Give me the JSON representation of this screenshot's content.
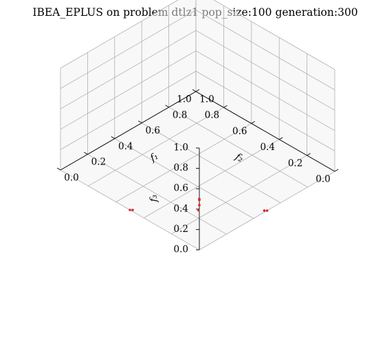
{
  "chart_data": {
    "type": "scatter",
    "title": "IBEA_EPLUS on problem dtlz1 pop_size:100 generation:300",
    "xlabel": "f₁",
    "ylabel": "f₂",
    "zlabel": "f₃",
    "xlim": [
      0,
      1
    ],
    "ylim": [
      0,
      1
    ],
    "zlim": [
      0,
      1
    ],
    "x_ticks": [
      "0.0",
      "0.2",
      "0.4",
      "0.6",
      "0.8",
      "1.0"
    ],
    "y_ticks": [
      "0.0",
      "0.2",
      "0.4",
      "0.6",
      "0.8",
      "1.0"
    ],
    "z_ticks": [
      "0.0",
      "0.2",
      "0.4",
      "0.6",
      "0.8",
      "1.0"
    ],
    "grid": true,
    "point_color": "#d62728",
    "series": [
      {
        "points": [
          {
            "x": 0.0,
            "y": 0.0,
            "z": 0.5
          },
          {
            "x": 0.0,
            "y": 0.0,
            "z": 0.49
          },
          {
            "x": 0.0,
            "y": 0.0,
            "z": 0.44
          },
          {
            "x": 0.5,
            "y": 0.0,
            "z": 0.0
          },
          {
            "x": 0.49,
            "y": 0.01,
            "z": 0.0
          },
          {
            "x": 0.0,
            "y": 0.5,
            "z": 0.0
          },
          {
            "x": 0.01,
            "y": 0.49,
            "z": 0.0
          },
          {
            "x": 0.25,
            "y": 0.25,
            "z": 0.0
          }
        ]
      }
    ]
  }
}
